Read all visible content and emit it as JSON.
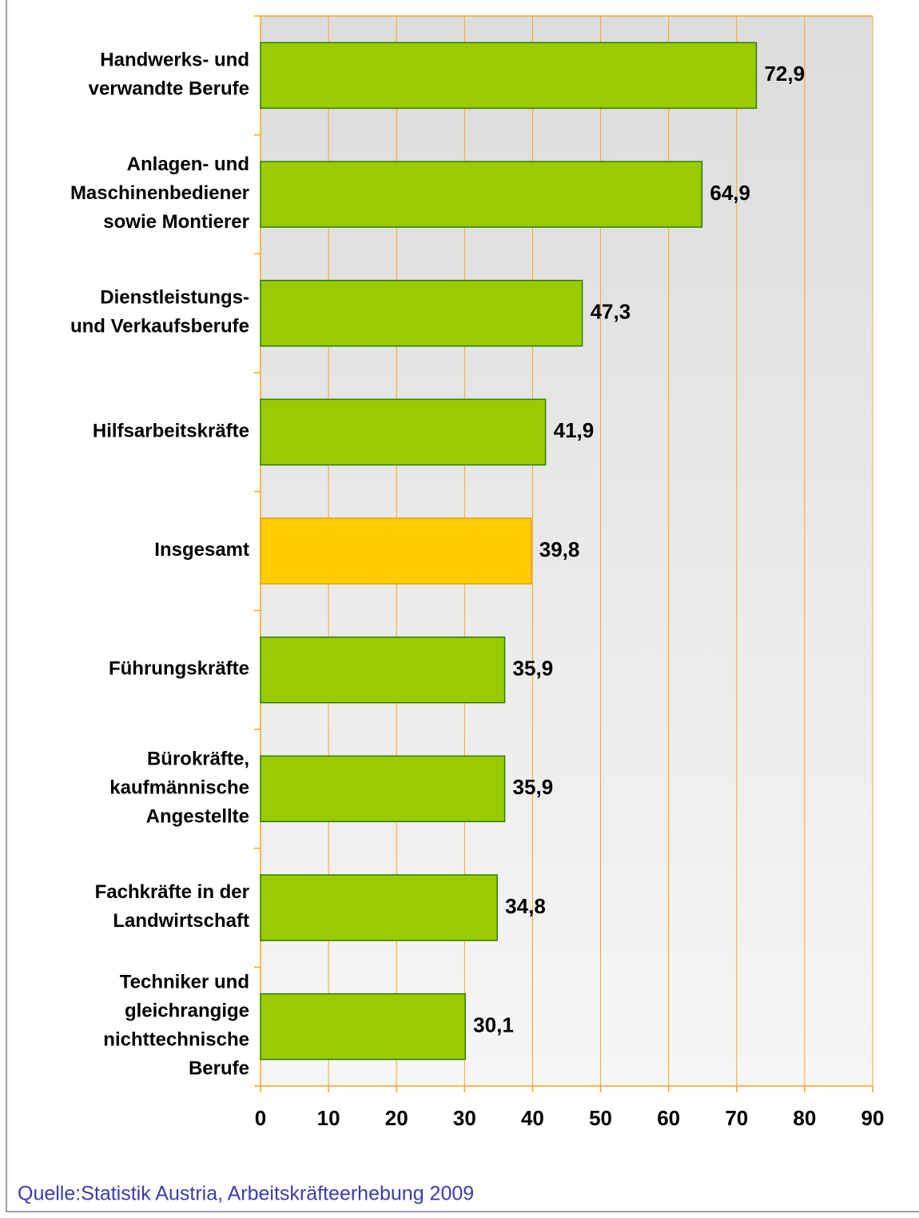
{
  "chart_data": {
    "type": "bar",
    "orientation": "horizontal",
    "categories": [
      "Handwerks- und\nverwandte Berufe",
      "Anlagen- und\nMaschinenbediener\nsowie Montierer",
      "Dienstleistungs-\nund Verkaufsberufe",
      "Hilfsarbeitskräfte",
      "Insgesamt",
      "Führungskräfte",
      "Bürokräfte,\nkaufmännische\nAngestellte",
      "Fachkräfte in der\nLandwirtschaft",
      "Techniker und\ngleichrangige\nnichttechnische\nBerufe"
    ],
    "values": [
      72.9,
      64.9,
      47.3,
      41.9,
      39.8,
      35.9,
      35.9,
      34.8,
      30.1
    ],
    "value_labels": [
      "72,9",
      "64,9",
      "47,3",
      "41,9",
      "39,8",
      "35,9",
      "35,9",
      "34,8",
      "30,1"
    ],
    "colors": [
      "#99cc00",
      "#99cc00",
      "#99cc00",
      "#99cc00",
      "#ffcc00",
      "#99cc00",
      "#99cc00",
      "#99cc00",
      "#99cc00"
    ],
    "xlim": [
      0,
      90
    ],
    "xticks": [
      0,
      10,
      20,
      30,
      40,
      50,
      60,
      70,
      80,
      90
    ],
    "grid": true
  },
  "source": "Quelle:Statistik Austria, Arbeitskräfteerhebung 2009"
}
